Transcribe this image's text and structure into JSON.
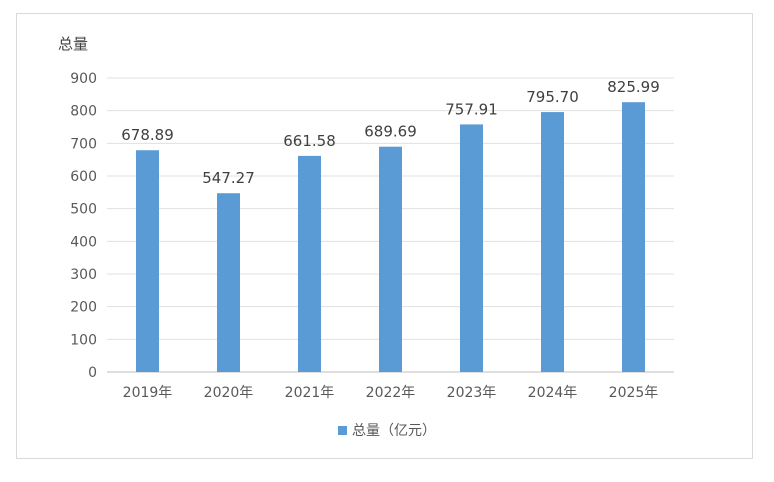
{
  "chart_data": {
    "type": "bar",
    "title": "",
    "ylabel": "总量",
    "xlabel": "",
    "categories": [
      "2019年",
      "2020年",
      "2021年",
      "2022年",
      "2023年",
      "2024年",
      "2025年"
    ],
    "series": [
      {
        "name": "总量（亿元）",
        "values": [
          678.89,
          547.27,
          661.58,
          689.69,
          757.91,
          795.7,
          825.99
        ],
        "labels": [
          "678.89",
          "547.27",
          "661.58",
          "689.69",
          "757.91",
          "795.70",
          "825.99"
        ]
      }
    ],
    "ylim": [
      0,
      900
    ],
    "yticks": [
      0,
      100,
      200,
      300,
      400,
      500,
      600,
      700,
      800,
      900
    ],
    "grid": true,
    "legend": "bottom",
    "bar_color": "#5b9bd5",
    "grid_color": "#e0e0e0"
  }
}
